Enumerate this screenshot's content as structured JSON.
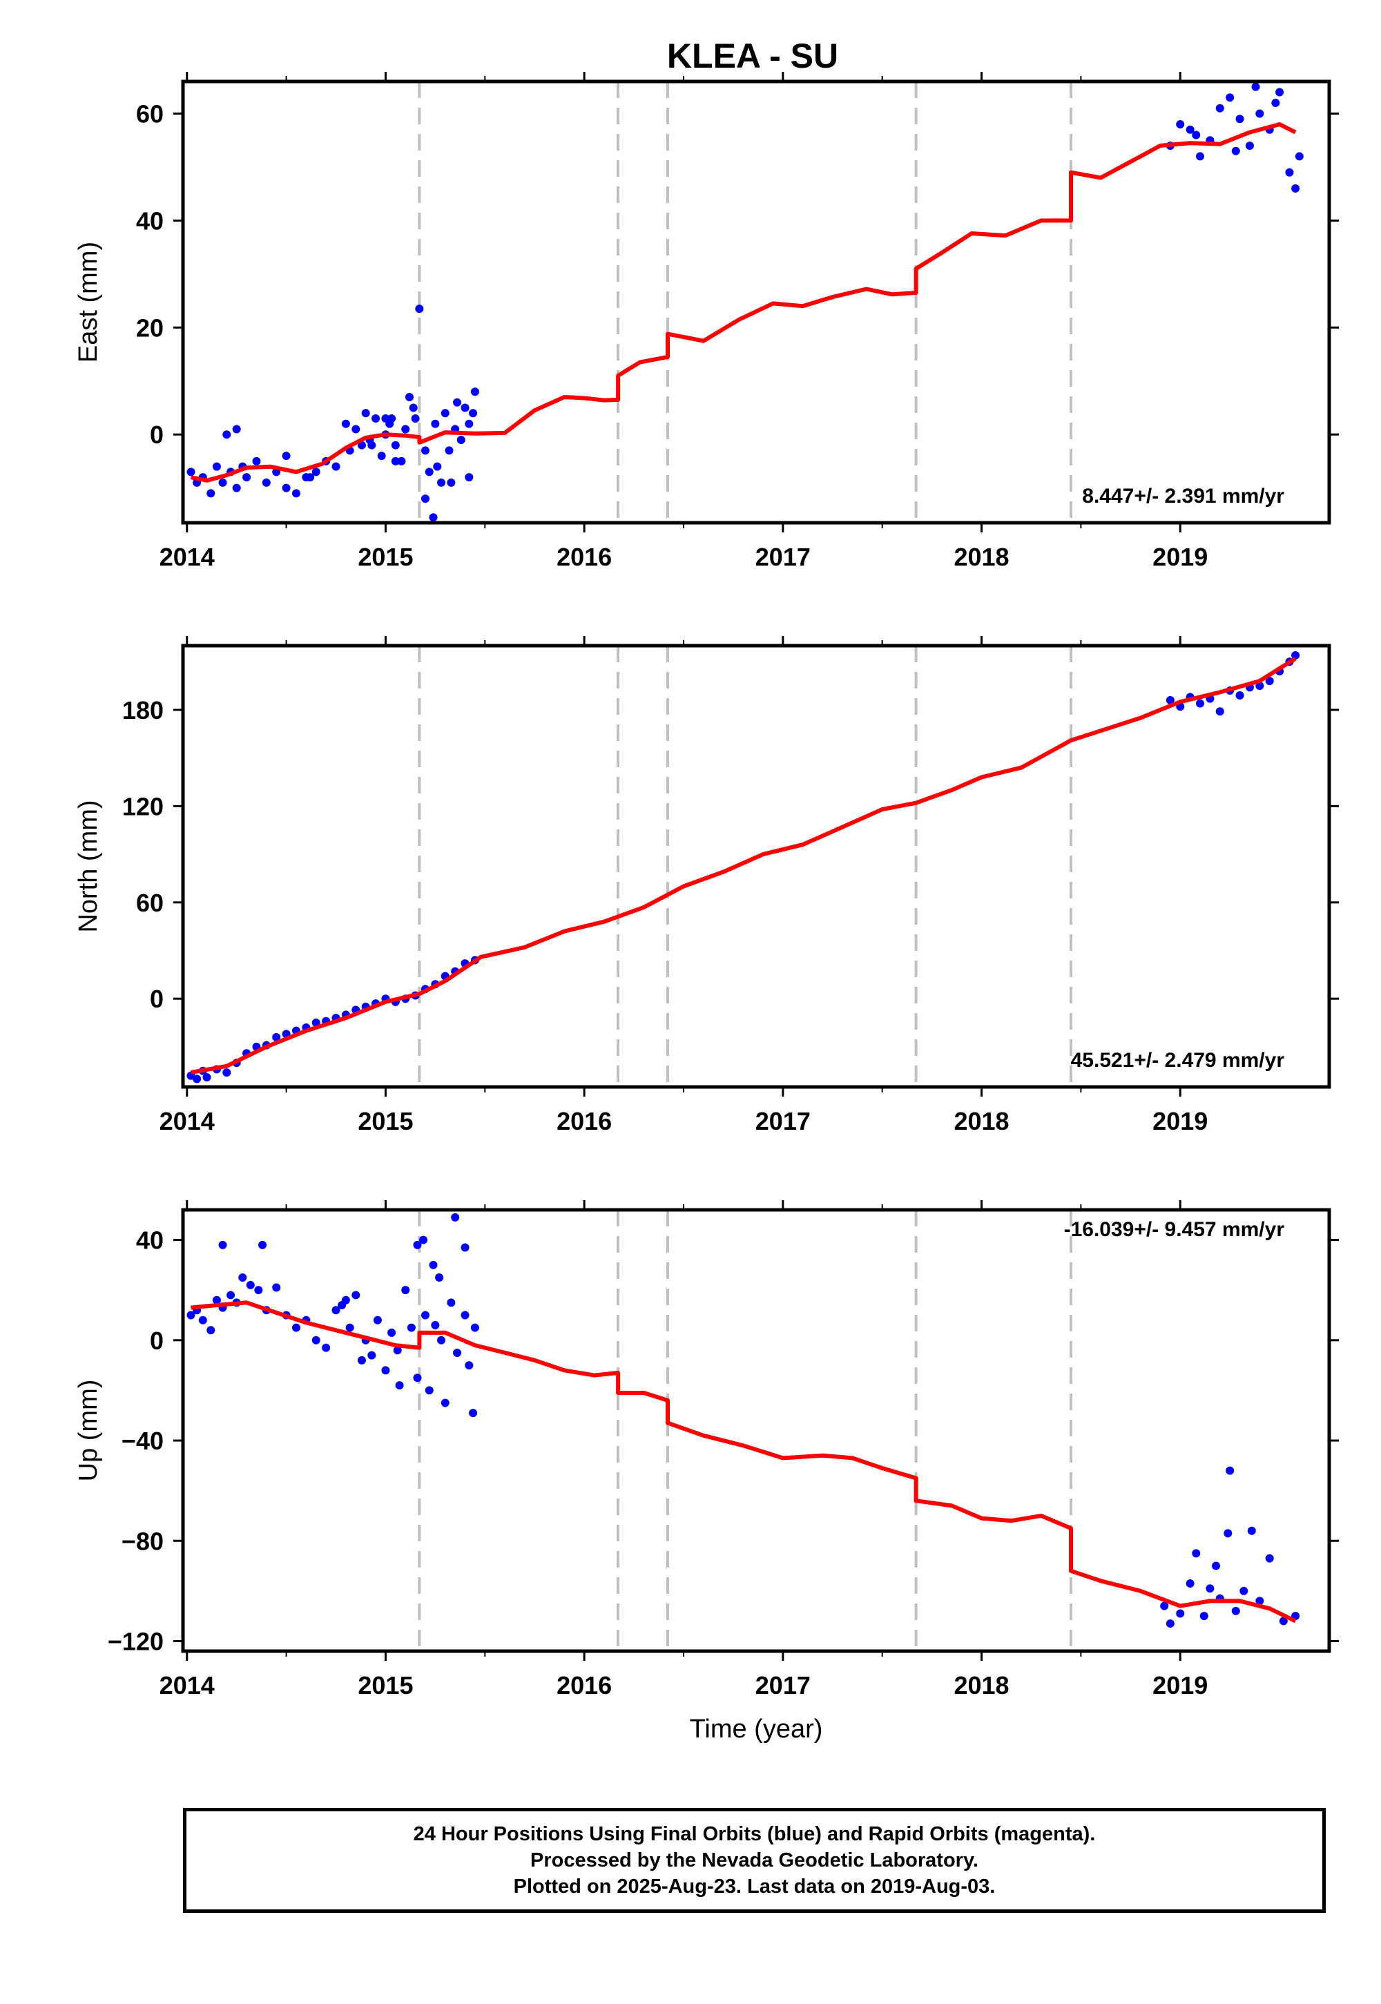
{
  "title": "KLEA - SU",
  "colors": {
    "data_points": "#0000ff",
    "model_line": "#ff0000",
    "step_lines": "#bfbfbf",
    "frame": "#000000"
  },
  "footer": {
    "line1": "24 Hour Positions Using Final Orbits (blue) and Rapid Orbits (magenta).",
    "line2": "Processed by the Nevada Geodetic Laboratory.",
    "line3": "Plotted on 2025-Aug-23. Last data on 2019-Aug-03."
  },
  "chart_data": [
    {
      "type": "scatter",
      "component": "East",
      "ylabel": "East (mm)",
      "xlabel": "",
      "rate_label": "8.447+/- 2.391 mm/yr",
      "xlim": [
        2013.98,
        2019.75
      ],
      "ylim": [
        -16.5,
        66
      ],
      "xticks": [
        2014,
        2015,
        2016,
        2017,
        2018,
        2019
      ],
      "xtick_labels": [
        "2014",
        "2015",
        "2016",
        "2017",
        "2018",
        "2019"
      ],
      "yticks": [
        0,
        20,
        40,
        60
      ],
      "ytick_labels": [
        "0",
        "20",
        "40",
        "60"
      ],
      "steps": [
        2015.17,
        2016.17,
        2016.42,
        2017.67,
        2018.45
      ],
      "model": {
        "x": [
          2014.02,
          2014.1,
          2014.2,
          2014.3,
          2014.42,
          2014.55,
          2014.68,
          2014.8,
          2014.9,
          2015.0,
          2015.1,
          2015.17,
          2015.17,
          2015.3,
          2015.45,
          2015.6,
          2015.75,
          2015.9,
          2016.0,
          2016.1,
          2016.17,
          2016.17,
          2016.28,
          2016.42,
          2016.42,
          2016.6,
          2016.78,
          2016.95,
          2017.1,
          2017.25,
          2017.42,
          2017.55,
          2017.67,
          2017.67,
          2017.8,
          2017.95,
          2018.12,
          2018.3,
          2018.45,
          2018.45,
          2018.6,
          2018.75,
          2018.9,
          2019.05,
          2019.2,
          2019.35,
          2019.5,
          2019.58
        ],
        "y": [
          -8,
          -8.6,
          -7.6,
          -6.2,
          -6.0,
          -7.0,
          -5.5,
          -2.5,
          -0.6,
          0.0,
          -0.2,
          -0.5,
          -1.5,
          0.4,
          0.2,
          0.3,
          4.5,
          7.0,
          6.8,
          6.4,
          6.5,
          11.0,
          13.5,
          14.5,
          18.8,
          17.5,
          21.5,
          24.5,
          24.0,
          25.7,
          27.2,
          26.2,
          26.5,
          31.0,
          34.0,
          37.6,
          37.2,
          40.0,
          40.0,
          49.0,
          48.0,
          51.0,
          54.0,
          54.5,
          54.3,
          56.5,
          58.0,
          56.5
        ]
      },
      "observations": {
        "x": [
          2014.02,
          2014.05,
          2014.08,
          2014.12,
          2014.15,
          2014.18,
          2014.22,
          2014.25,
          2014.28,
          2014.3,
          2014.35,
          2014.4,
          2014.45,
          2014.5,
          2014.55,
          2014.6,
          2014.65,
          2014.7,
          2014.75,
          2014.8,
          2014.82,
          2014.85,
          2014.88,
          2014.9,
          2014.92,
          2014.95,
          2014.98,
          2015.0,
          2015.02,
          2015.05,
          2015.08,
          2015.1,
          2015.12,
          2015.15,
          2015.17,
          2015.2,
          2015.22,
          2015.25,
          2015.28,
          2015.3,
          2015.32,
          2015.35,
          2015.38,
          2015.4,
          2015.42,
          2015.45,
          2014.2,
          2014.25,
          2014.5,
          2014.62,
          2015.05,
          2015.2,
          2015.24,
          2015.33,
          2015.42,
          2015.03,
          2015.14,
          2015.26,
          2015.44,
          2014.93,
          2015.0,
          2015.36,
          2019.05,
          2019.1,
          2019.15,
          2019.2,
          2019.25,
          2019.3,
          2019.35,
          2019.4,
          2019.45,
          2019.5,
          2019.55,
          2019.6,
          2018.95,
          2019.0,
          2019.08,
          2019.28,
          2019.38,
          2019.48,
          2019.58
        ],
        "y": [
          -7,
          -9,
          -8,
          -11,
          -6,
          -9,
          -7,
          -10,
          -6,
          -8,
          -5,
          -9,
          -7,
          -4,
          -11,
          -8,
          -7,
          -5,
          -6,
          2,
          -3,
          1,
          -2,
          4,
          -1,
          3,
          -4,
          0,
          2,
          -2,
          -5,
          1,
          7,
          3,
          23.5,
          -3,
          -7,
          2,
          -9,
          4,
          -3,
          1,
          -1,
          5,
          2,
          8,
          0,
          1,
          -10,
          -8,
          -5,
          -12,
          -15.5,
          -9,
          -8,
          3,
          5,
          -6,
          4,
          -2,
          3,
          6,
          57,
          52,
          55,
          61,
          63,
          59,
          54,
          60,
          57,
          64,
          49,
          52,
          54,
          58,
          56,
          53,
          65,
          62,
          46
        ]
      }
    },
    {
      "type": "scatter",
      "component": "North",
      "ylabel": "North (mm)",
      "xlabel": "",
      "rate_label": "45.521+/- 2.479 mm/yr",
      "xlim": [
        2013.98,
        2019.75
      ],
      "ylim": [
        -55,
        220
      ],
      "xticks": [
        2014,
        2015,
        2016,
        2017,
        2018,
        2019
      ],
      "xtick_labels": [
        "2014",
        "2015",
        "2016",
        "2017",
        "2018",
        "2019"
      ],
      "yticks": [
        0,
        60,
        120,
        180
      ],
      "ytick_labels": [
        "0",
        "60",
        "120",
        "180"
      ],
      "steps": [
        2015.17,
        2016.17,
        2016.42,
        2017.67,
        2018.45
      ],
      "model": {
        "x": [
          2014.02,
          2014.2,
          2014.4,
          2014.6,
          2014.8,
          2015.0,
          2015.17,
          2015.3,
          2015.48,
          2015.7,
          2015.9,
          2016.1,
          2016.3,
          2016.5,
          2016.7,
          2016.9,
          2017.1,
          2017.3,
          2017.5,
          2017.67,
          2017.85,
          2018.0,
          2018.2,
          2018.45,
          2018.6,
          2018.8,
          2019.0,
          2019.2,
          2019.4,
          2019.58
        ],
        "y": [
          -46,
          -42,
          -30,
          -20,
          -12,
          -2,
          3,
          11,
          26,
          32,
          42,
          48,
          57,
          70,
          79,
          90,
          96,
          107,
          118,
          122,
          130,
          138,
          144,
          161,
          167,
          175,
          185,
          191,
          198,
          212
        ]
      },
      "observations": {
        "x": [
          2014.02,
          2014.05,
          2014.08,
          2014.1,
          2014.15,
          2014.2,
          2014.25,
          2014.3,
          2014.35,
          2014.4,
          2014.45,
          2014.5,
          2014.55,
          2014.6,
          2014.65,
          2014.7,
          2014.75,
          2014.8,
          2014.85,
          2014.9,
          2014.95,
          2015.0,
          2015.05,
          2015.1,
          2015.15,
          2015.2,
          2015.25,
          2015.3,
          2015.35,
          2015.4,
          2015.45,
          2018.95,
          2019.0,
          2019.05,
          2019.1,
          2019.15,
          2019.2,
          2019.25,
          2019.3,
          2019.35,
          2019.4,
          2019.45,
          2019.5,
          2019.55,
          2019.58
        ],
        "y": [
          -48,
          -50,
          -45,
          -49,
          -44,
          -46,
          -40,
          -34,
          -30,
          -29,
          -24,
          -22,
          -20,
          -18,
          -15,
          -14,
          -12,
          -10,
          -7,
          -5,
          -3,
          0,
          -2,
          0,
          2,
          6,
          9,
          14,
          17,
          22,
          24,
          186,
          182,
          188,
          184,
          187,
          179,
          192,
          189,
          194,
          195,
          198,
          204,
          210,
          214
        ]
      }
    },
    {
      "type": "scatter",
      "component": "Up",
      "ylabel": "Up (mm)",
      "xlabel": "Time (year)",
      "rate_label": "-16.039+/- 9.457 mm/yr",
      "xlim": [
        2013.98,
        2019.75
      ],
      "ylim": [
        -124,
        52
      ],
      "xticks": [
        2014,
        2015,
        2016,
        2017,
        2018,
        2019
      ],
      "xtick_labels": [
        "2014",
        "2015",
        "2016",
        "2017",
        "2018",
        "2019"
      ],
      "yticks": [
        -120,
        -80,
        -40,
        0,
        40
      ],
      "ytick_labels": [
        "−120",
        "−80",
        "−40",
        "0",
        "40"
      ],
      "steps": [
        2015.17,
        2016.17,
        2016.42,
        2017.67,
        2018.45
      ],
      "model": {
        "x": [
          2014.02,
          2014.15,
          2014.3,
          2014.45,
          2014.6,
          2014.75,
          2014.9,
          2015.05,
          2015.17,
          2015.17,
          2015.3,
          2015.45,
          2015.6,
          2015.75,
          2015.9,
          2016.05,
          2016.17,
          2016.17,
          2016.3,
          2016.42,
          2016.42,
          2016.6,
          2016.8,
          2017.0,
          2017.2,
          2017.35,
          2017.5,
          2017.67,
          2017.67,
          2017.85,
          2018.0,
          2018.15,
          2018.3,
          2018.45,
          2018.45,
          2018.6,
          2018.8,
          2019.0,
          2019.15,
          2019.3,
          2019.45,
          2019.58
        ],
        "y": [
          13,
          14,
          15,
          11,
          7,
          4,
          1,
          -2,
          -3,
          3,
          3,
          -2,
          -5,
          -8,
          -12,
          -14,
          -13,
          -21,
          -21,
          -24,
          -33,
          -38,
          -42,
          -47,
          -46,
          -47,
          -51,
          -55,
          -64,
          -66,
          -71,
          -72,
          -70,
          -75,
          -92,
          -96,
          -100,
          -106,
          -104,
          -104,
          -107,
          -112
        ]
      },
      "observations": {
        "x": [
          2014.02,
          2014.05,
          2014.08,
          2014.12,
          2014.15,
          2014.18,
          2014.22,
          2014.25,
          2014.28,
          2014.32,
          2014.36,
          2014.4,
          2014.45,
          2014.5,
          2014.55,
          2014.6,
          2014.65,
          2014.7,
          2014.75,
          2014.78,
          2014.82,
          2014.85,
          2014.88,
          2014.9,
          2014.93,
          2014.96,
          2015.0,
          2015.03,
          2015.06,
          2015.1,
          2015.13,
          2015.16,
          2015.2,
          2015.22,
          2015.25,
          2015.28,
          2015.3,
          2015.33,
          2015.36,
          2015.4,
          2015.42,
          2015.45,
          2014.18,
          2014.38,
          2015.16,
          2015.35,
          2015.4,
          2015.27,
          2015.19,
          2014.8,
          2015.07,
          2015.24,
          2015.44,
          2018.92,
          2018.95,
          2019.0,
          2019.05,
          2019.08,
          2019.12,
          2019.15,
          2019.18,
          2019.2,
          2019.24,
          2019.28,
          2019.32,
          2019.36,
          2019.4,
          2019.45,
          2019.52,
          2019.58,
          2019.25
        ],
        "y": [
          10,
          12,
          8,
          4,
          16,
          13,
          18,
          15,
          25,
          22,
          20,
          12,
          21,
          10,
          5,
          8,
          0,
          -3,
          12,
          14,
          5,
          18,
          -8,
          0,
          -6,
          8,
          -12,
          3,
          -4,
          20,
          5,
          -15,
          10,
          -20,
          6,
          0,
          -25,
          15,
          -5,
          10,
          -10,
          5,
          38,
          38,
          38,
          49,
          37,
          25,
          40,
          16,
          -18,
          30,
          -29,
          -106,
          -113,
          -109,
          -97,
          -85,
          -110,
          -99,
          -90,
          -103,
          -77,
          -108,
          -100,
          -76,
          -104,
          -87,
          -112,
          -110,
          -52
        ]
      }
    }
  ]
}
